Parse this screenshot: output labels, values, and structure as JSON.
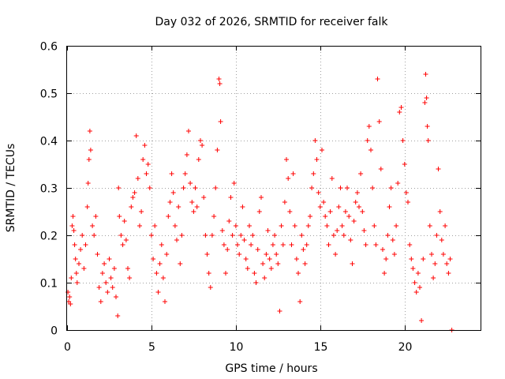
{
  "chart_data": {
    "type": "scatter",
    "title": "Day 032 of 2026, SRMTID for receiver falk",
    "xlabel": "GPS time / hours",
    "ylabel": "SRMTID / TECUs",
    "xlim": [
      0,
      24.5
    ],
    "ylim": [
      0,
      0.6
    ],
    "x_ticks": [
      0,
      5,
      10,
      15,
      20
    ],
    "x_tick_labels": [
      "0",
      "5",
      "10",
      "15",
      "20"
    ],
    "y_ticks": [
      0,
      0.1,
      0.2,
      0.3,
      0.4,
      0.5,
      0.6
    ],
    "y_tick_labels": [
      "0",
      "0.1",
      "0.2",
      "0.3",
      "0.4",
      "0.5",
      "0.6"
    ],
    "grid": true,
    "marker": "+",
    "color": "#ff0000",
    "series": [
      {
        "name": "SRMTID",
        "points": [
          [
            0.05,
            0.08
          ],
          [
            0.1,
            0.06
          ],
          [
            0.15,
            0.07
          ],
          [
            0.2,
            0.055
          ],
          [
            0.25,
            0.11
          ],
          [
            0.3,
            0.22
          ],
          [
            0.35,
            0.24
          ],
          [
            0.4,
            0.21
          ],
          [
            0.45,
            0.18
          ],
          [
            0.5,
            0.15
          ],
          [
            0.55,
            0.12
          ],
          [
            0.6,
            0.1
          ],
          [
            0.7,
            0.14
          ],
          [
            0.8,
            0.17
          ],
          [
            0.9,
            0.2
          ],
          [
            1.0,
            0.13
          ],
          [
            1.1,
            0.18
          ],
          [
            1.2,
            0.26
          ],
          [
            1.25,
            0.31
          ],
          [
            1.3,
            0.36
          ],
          [
            1.35,
            0.42
          ],
          [
            1.4,
            0.38
          ],
          [
            1.5,
            0.22
          ],
          [
            1.6,
            0.2
          ],
          [
            1.7,
            0.24
          ],
          [
            1.8,
            0.16
          ],
          [
            1.9,
            0.09
          ],
          [
            2.0,
            0.06
          ],
          [
            2.1,
            0.12
          ],
          [
            2.2,
            0.14
          ],
          [
            2.3,
            0.1
          ],
          [
            2.4,
            0.08
          ],
          [
            2.5,
            0.15
          ],
          [
            2.6,
            0.11
          ],
          [
            2.7,
            0.09
          ],
          [
            2.8,
            0.13
          ],
          [
            2.9,
            0.07
          ],
          [
            3.0,
            0.03
          ],
          [
            3.05,
            0.3
          ],
          [
            3.1,
            0.24
          ],
          [
            3.2,
            0.2
          ],
          [
            3.3,
            0.18
          ],
          [
            3.4,
            0.23
          ],
          [
            3.5,
            0.19
          ],
          [
            3.6,
            0.13
          ],
          [
            3.7,
            0.11
          ],
          [
            3.8,
            0.26
          ],
          [
            3.9,
            0.28
          ],
          [
            4.0,
            0.29
          ],
          [
            4.1,
            0.41
          ],
          [
            4.2,
            0.32
          ],
          [
            4.3,
            0.22
          ],
          [
            4.4,
            0.25
          ],
          [
            4.5,
            0.36
          ],
          [
            4.6,
            0.39
          ],
          [
            4.7,
            0.33
          ],
          [
            4.8,
            0.35
          ],
          [
            4.9,
            0.3
          ],
          [
            5.0,
            0.2
          ],
          [
            5.1,
            0.15
          ],
          [
            5.2,
            0.22
          ],
          [
            5.3,
            0.12
          ],
          [
            5.4,
            0.08
          ],
          [
            5.5,
            0.14
          ],
          [
            5.6,
            0.18
          ],
          [
            5.7,
            0.11
          ],
          [
            5.8,
            0.06
          ],
          [
            5.9,
            0.16
          ],
          [
            6.0,
            0.24
          ],
          [
            6.1,
            0.27
          ],
          [
            6.2,
            0.33
          ],
          [
            6.3,
            0.29
          ],
          [
            6.4,
            0.22
          ],
          [
            6.5,
            0.19
          ],
          [
            6.6,
            0.26
          ],
          [
            6.7,
            0.14
          ],
          [
            6.8,
            0.2
          ],
          [
            6.9,
            0.3
          ],
          [
            7.0,
            0.33
          ],
          [
            7.1,
            0.37
          ],
          [
            7.2,
            0.42
          ],
          [
            7.3,
            0.31
          ],
          [
            7.4,
            0.27
          ],
          [
            7.5,
            0.25
          ],
          [
            7.6,
            0.3
          ],
          [
            7.7,
            0.26
          ],
          [
            7.8,
            0.36
          ],
          [
            7.9,
            0.4
          ],
          [
            8.0,
            0.39
          ],
          [
            8.1,
            0.28
          ],
          [
            8.2,
            0.2
          ],
          [
            8.3,
            0.16
          ],
          [
            8.4,
            0.12
          ],
          [
            8.5,
            0.09
          ],
          [
            8.6,
            0.2
          ],
          [
            8.7,
            0.24
          ],
          [
            8.8,
            0.3
          ],
          [
            8.9,
            0.38
          ],
          [
            9.0,
            0.53
          ],
          [
            9.05,
            0.52
          ],
          [
            9.1,
            0.44
          ],
          [
            9.2,
            0.21
          ],
          [
            9.3,
            0.18
          ],
          [
            9.4,
            0.12
          ],
          [
            9.5,
            0.17
          ],
          [
            9.6,
            0.23
          ],
          [
            9.7,
            0.28
          ],
          [
            9.8,
            0.2
          ],
          [
            9.9,
            0.31
          ],
          [
            10.0,
            0.22
          ],
          [
            10.1,
            0.18
          ],
          [
            10.2,
            0.16
          ],
          [
            10.3,
            0.2
          ],
          [
            10.4,
            0.26
          ],
          [
            10.5,
            0.19
          ],
          [
            10.6,
            0.15
          ],
          [
            10.7,
            0.13
          ],
          [
            10.8,
            0.22
          ],
          [
            10.9,
            0.18
          ],
          [
            11.0,
            0.2
          ],
          [
            11.1,
            0.12
          ],
          [
            11.2,
            0.1
          ],
          [
            11.3,
            0.17
          ],
          [
            11.4,
            0.25
          ],
          [
            11.5,
            0.28
          ],
          [
            11.6,
            0.14
          ],
          [
            11.7,
            0.11
          ],
          [
            11.8,
            0.16
          ],
          [
            11.9,
            0.21
          ],
          [
            12.0,
            0.15
          ],
          [
            12.1,
            0.13
          ],
          [
            12.2,
            0.18
          ],
          [
            12.3,
            0.2
          ],
          [
            12.4,
            0.16
          ],
          [
            12.5,
            0.14
          ],
          [
            12.6,
            0.04
          ],
          [
            12.7,
            0.22
          ],
          [
            12.8,
            0.18
          ],
          [
            12.9,
            0.27
          ],
          [
            13.0,
            0.36
          ],
          [
            13.1,
            0.32
          ],
          [
            13.2,
            0.25
          ],
          [
            13.3,
            0.18
          ],
          [
            13.4,
            0.33
          ],
          [
            13.5,
            0.22
          ],
          [
            13.6,
            0.15
          ],
          [
            13.7,
            0.12
          ],
          [
            13.8,
            0.06
          ],
          [
            13.9,
            0.2
          ],
          [
            14.0,
            0.17
          ],
          [
            14.1,
            0.14
          ],
          [
            14.2,
            0.18
          ],
          [
            14.3,
            0.22
          ],
          [
            14.4,
            0.24
          ],
          [
            14.5,
            0.3
          ],
          [
            14.6,
            0.33
          ],
          [
            14.7,
            0.4
          ],
          [
            14.8,
            0.36
          ],
          [
            14.9,
            0.29
          ],
          [
            15.0,
            0.26
          ],
          [
            15.1,
            0.38
          ],
          [
            15.2,
            0.27
          ],
          [
            15.3,
            0.24
          ],
          [
            15.4,
            0.22
          ],
          [
            15.5,
            0.18
          ],
          [
            15.6,
            0.25
          ],
          [
            15.7,
            0.32
          ],
          [
            15.8,
            0.2
          ],
          [
            15.9,
            0.16
          ],
          [
            16.0,
            0.21
          ],
          [
            16.1,
            0.26
          ],
          [
            16.2,
            0.3
          ],
          [
            16.3,
            0.22
          ],
          [
            16.4,
            0.2
          ],
          [
            16.5,
            0.25
          ],
          [
            16.6,
            0.3
          ],
          [
            16.7,
            0.24
          ],
          [
            16.8,
            0.19
          ],
          [
            16.9,
            0.14
          ],
          [
            17.0,
            0.23
          ],
          [
            17.1,
            0.27
          ],
          [
            17.2,
            0.29
          ],
          [
            17.3,
            0.26
          ],
          [
            17.4,
            0.33
          ],
          [
            17.5,
            0.25
          ],
          [
            17.6,
            0.21
          ],
          [
            17.7,
            0.18
          ],
          [
            17.8,
            0.4
          ],
          [
            17.9,
            0.43
          ],
          [
            18.0,
            0.38
          ],
          [
            18.1,
            0.3
          ],
          [
            18.2,
            0.22
          ],
          [
            18.3,
            0.18
          ],
          [
            18.4,
            0.53
          ],
          [
            18.5,
            0.44
          ],
          [
            18.6,
            0.34
          ],
          [
            18.7,
            0.17
          ],
          [
            18.8,
            0.12
          ],
          [
            18.9,
            0.15
          ],
          [
            19.0,
            0.2
          ],
          [
            19.1,
            0.26
          ],
          [
            19.2,
            0.3
          ],
          [
            19.3,
            0.19
          ],
          [
            19.4,
            0.16
          ],
          [
            19.5,
            0.22
          ],
          [
            19.6,
            0.31
          ],
          [
            19.7,
            0.46
          ],
          [
            19.8,
            0.47
          ],
          [
            19.9,
            0.4
          ],
          [
            20.0,
            0.35
          ],
          [
            20.1,
            0.29
          ],
          [
            20.2,
            0.27
          ],
          [
            20.3,
            0.18
          ],
          [
            20.4,
            0.15
          ],
          [
            20.5,
            0.13
          ],
          [
            20.6,
            0.1
          ],
          [
            20.7,
            0.08
          ],
          [
            20.8,
            0.12
          ],
          [
            20.9,
            0.09
          ],
          [
            21.0,
            0.02
          ],
          [
            21.1,
            0.15
          ],
          [
            21.2,
            0.48
          ],
          [
            21.25,
            0.54
          ],
          [
            21.3,
            0.49
          ],
          [
            21.35,
            0.43
          ],
          [
            21.4,
            0.4
          ],
          [
            21.5,
            0.22
          ],
          [
            21.6,
            0.16
          ],
          [
            21.7,
            0.11
          ],
          [
            21.8,
            0.14
          ],
          [
            21.9,
            0.2
          ],
          [
            22.0,
            0.34
          ],
          [
            22.1,
            0.25
          ],
          [
            22.2,
            0.19
          ],
          [
            22.3,
            0.16
          ],
          [
            22.4,
            0.22
          ],
          [
            22.5,
            0.14
          ],
          [
            22.6,
            0.12
          ],
          [
            22.7,
            0.15
          ],
          [
            22.8,
            0.0
          ]
        ]
      }
    ]
  }
}
